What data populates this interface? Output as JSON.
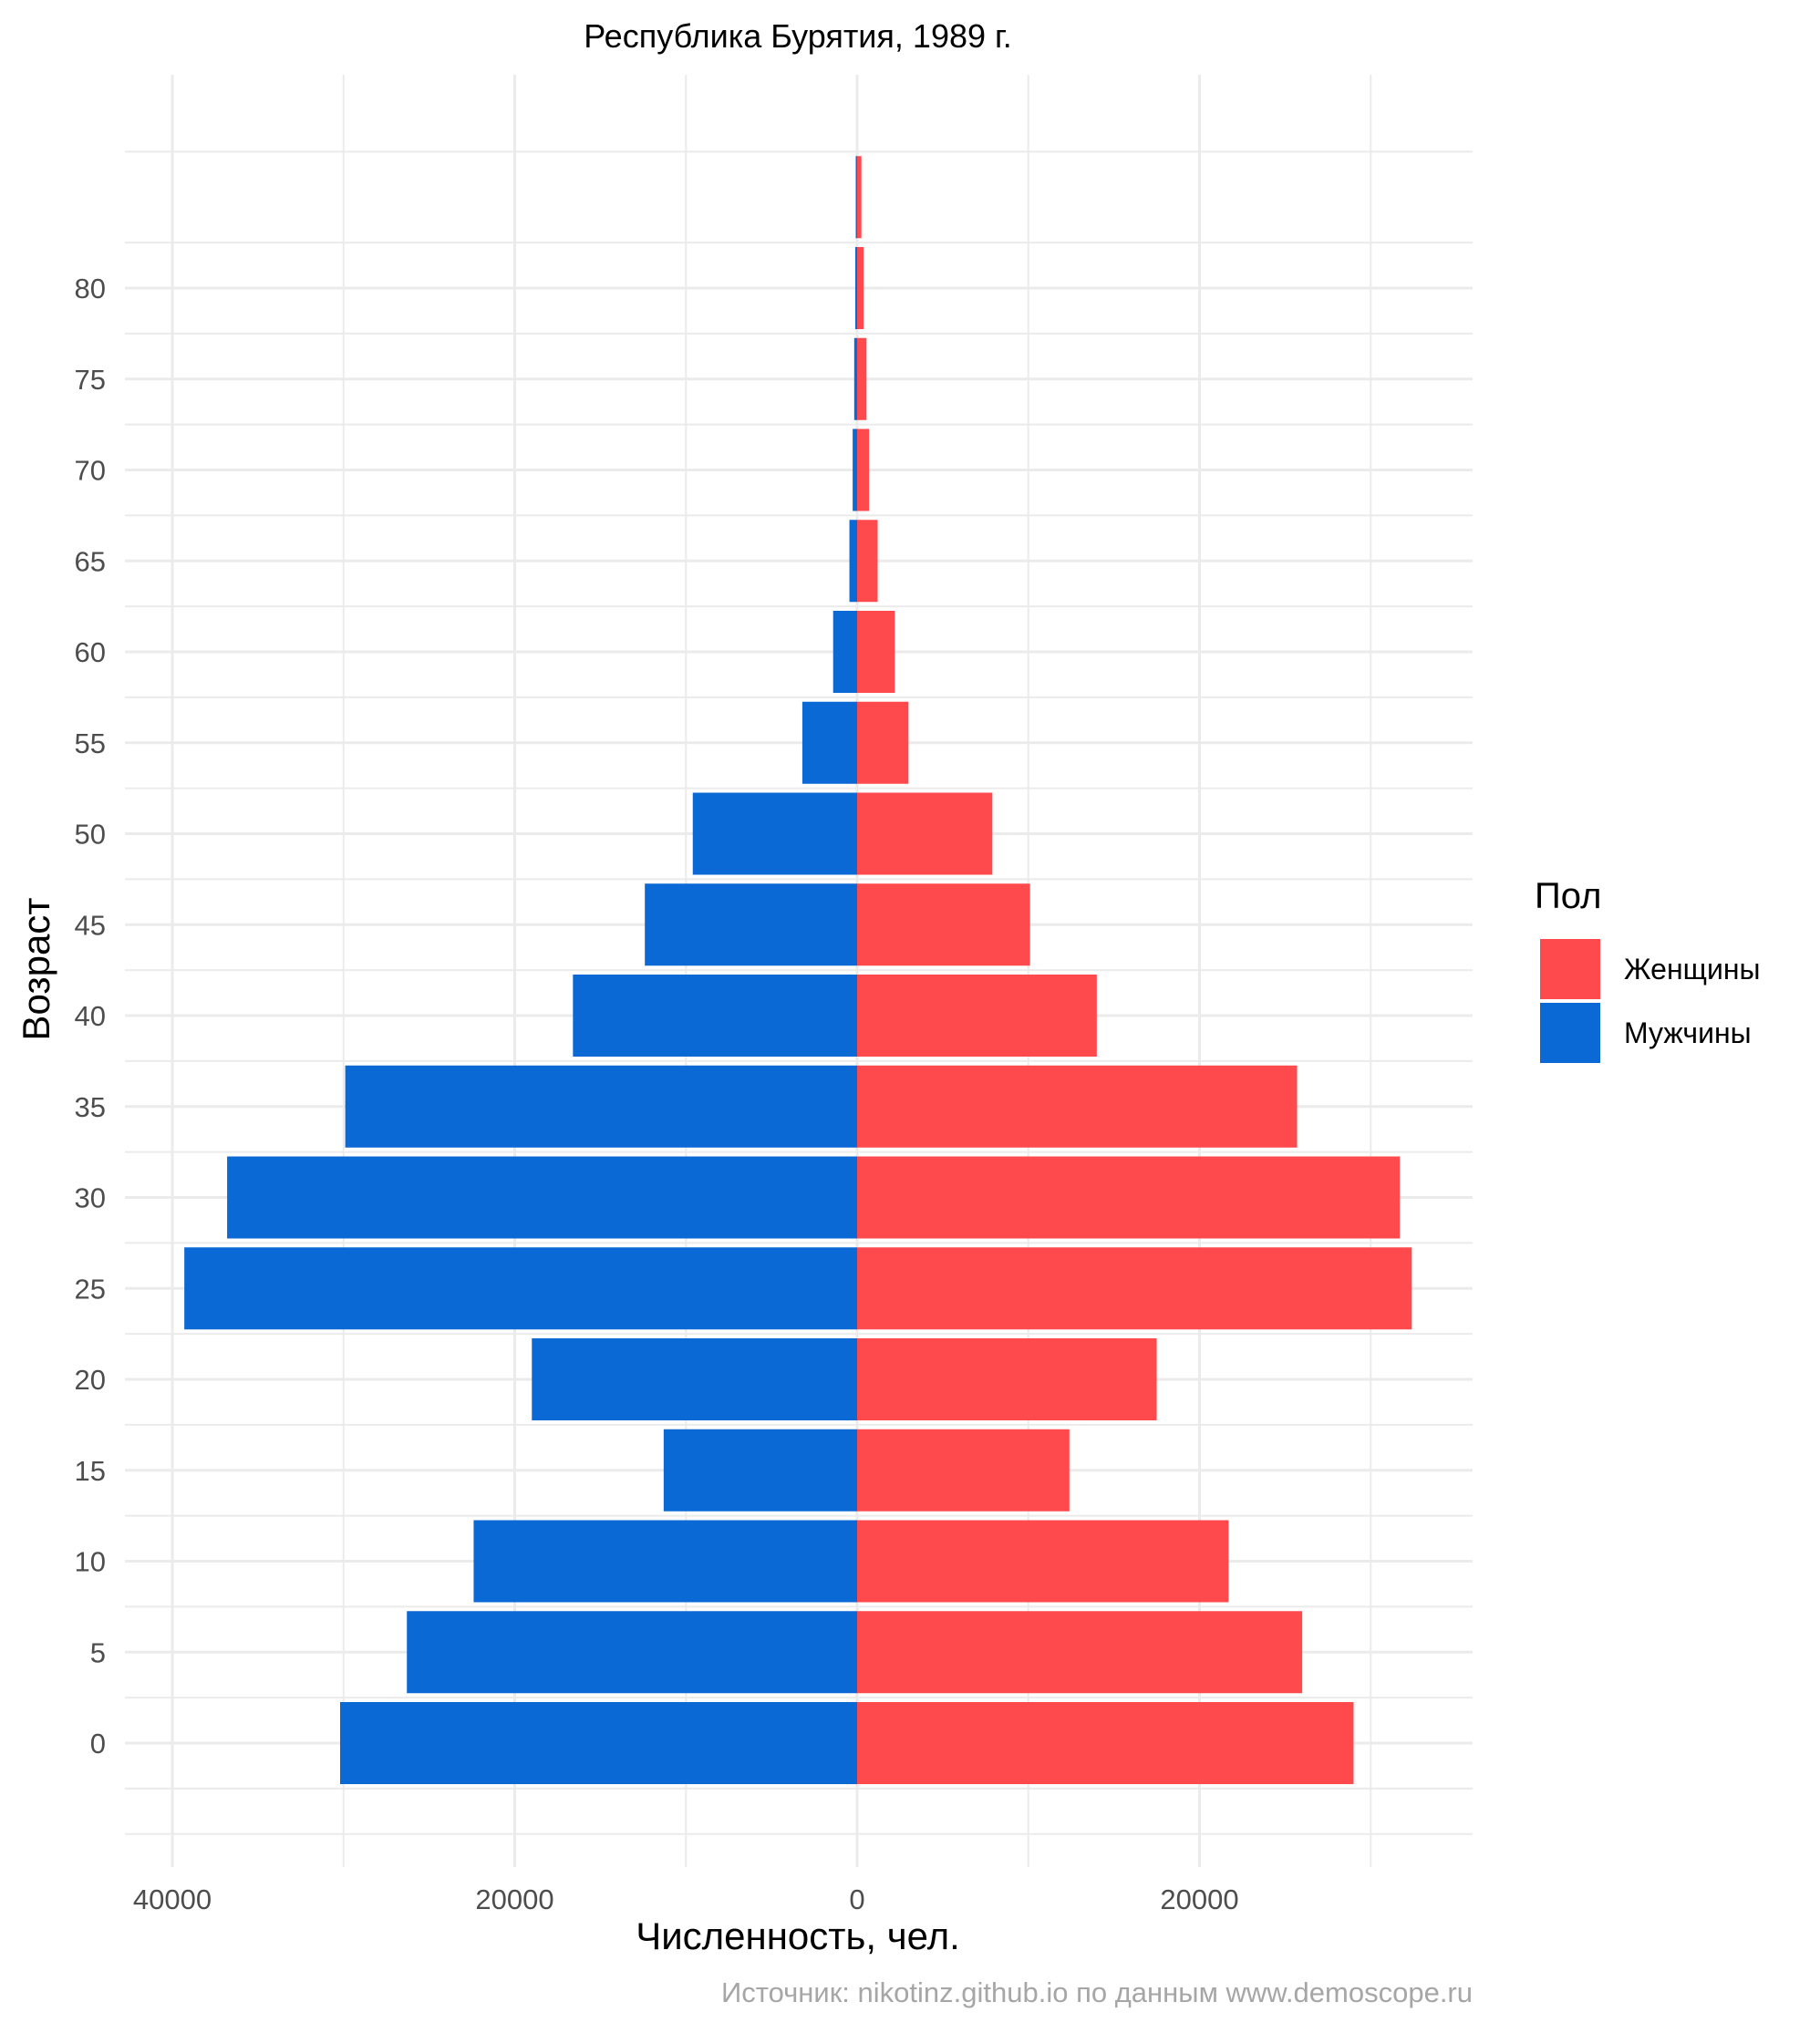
{
  "chart_data": {
    "type": "bar",
    "orientation": "horizontal",
    "title": "Республика Бурятия, 1989 г.",
    "xlabel": "Численность, чел.",
    "ylabel": "Возраст",
    "caption": "Источник: nikotinz.github.io по данным www.demoscope.ru",
    "xlim": [
      -40000,
      36000
    ],
    "x_ticks": [
      {
        "value": -40000,
        "label": "40000"
      },
      {
        "value": -20000,
        "label": "20000"
      },
      {
        "value": 0,
        "label": "0"
      },
      {
        "value": 20000,
        "label": "20000"
      }
    ],
    "y_ticks": [
      0,
      5,
      10,
      15,
      20,
      25,
      30,
      35,
      40,
      45,
      50,
      55,
      60,
      65,
      70,
      75,
      80
    ],
    "y_tick_labels": [
      "0",
      "5",
      "10",
      "15",
      "20",
      "25",
      "30",
      "35",
      "40",
      "45",
      "50",
      "55",
      "60",
      "65",
      "70",
      "75",
      "80"
    ],
    "categories": [
      0,
      5,
      10,
      15,
      20,
      25,
      30,
      35,
      40,
      45,
      50,
      55,
      60,
      65,
      70,
      75,
      80,
      85
    ],
    "series": [
      {
        "name": "Женщины",
        "color": "#ff4a4d",
        "values": [
          29000,
          26000,
          21700,
          12400,
          17500,
          32400,
          31700,
          25700,
          14000,
          10100,
          7900,
          3000,
          2200,
          1200,
          700,
          550,
          380,
          250
        ]
      },
      {
        "name": "Мужчины",
        "color": "#0b69d6",
        "values": [
          -30200,
          -26300,
          -22400,
          -11300,
          -19000,
          -39300,
          -36800,
          -29900,
          -16600,
          -12400,
          -9600,
          -3200,
          -1400,
          -450,
          -260,
          -170,
          -110,
          -80
        ]
      }
    ],
    "legend": {
      "title": "Пол",
      "position": "right"
    },
    "grid": true
  }
}
